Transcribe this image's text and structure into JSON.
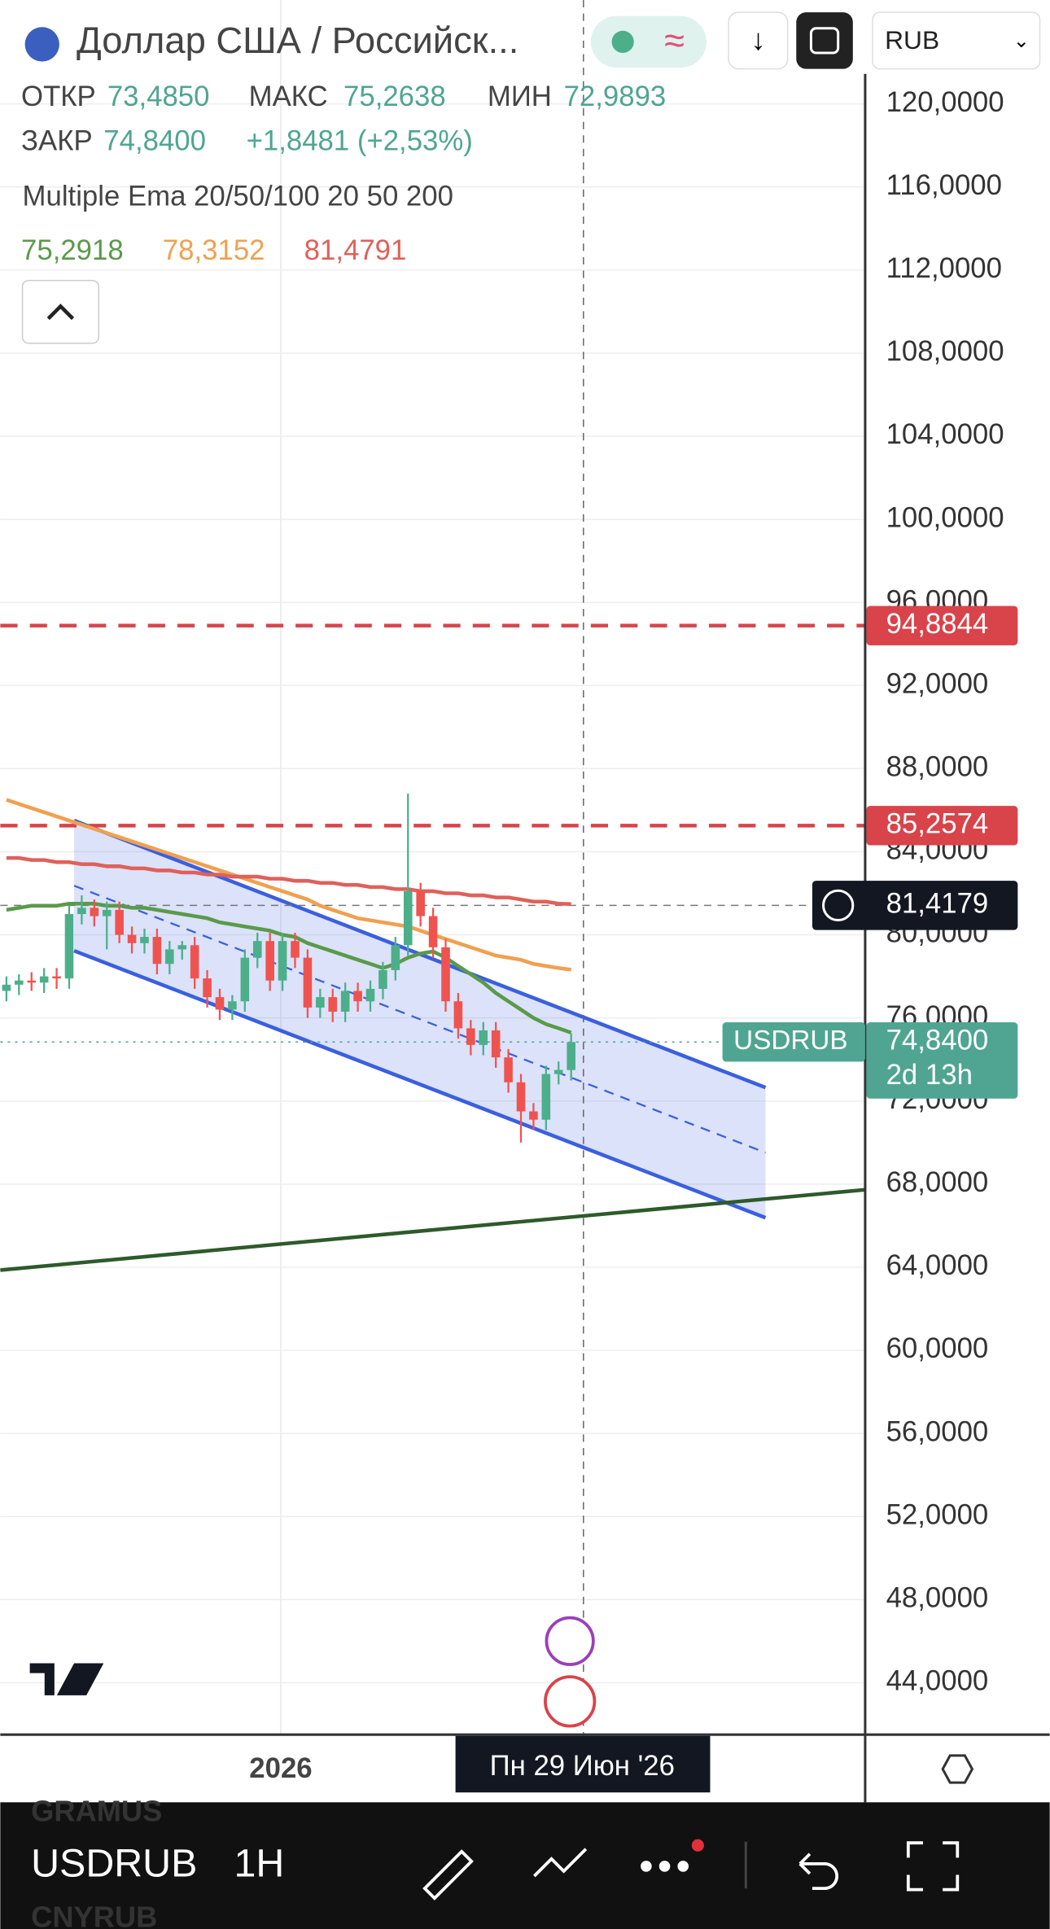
{
  "header": {
    "title": "Доллар США / Российск...",
    "open_label": "ОТКР",
    "open": "73,4850",
    "high_label": "МАКС",
    "high": "75,2638",
    "low_label": "МИН",
    "low": "72,9893",
    "close_label": "ЗАКР",
    "close": "74,8400",
    "change": "+1,8481 (+2,53%)",
    "currency": "RUB"
  },
  "indicator": {
    "name": "Multiple Ema 20/50/100 20 50 200",
    "values": [
      "75,2918",
      "78,3152",
      "81,4791"
    ]
  },
  "chart_data": {
    "type": "candlestick",
    "open": [
      77.3,
      77.6,
      77.8,
      77.7,
      78.0,
      77.9,
      81.0,
      81.3,
      80.9,
      81.2,
      80.0,
      79.6,
      79.9,
      78.6,
      79.3,
      79.5,
      77.9,
      77.0,
      76.4,
      76.8,
      78.9,
      79.7,
      77.8,
      79.7,
      78.9,
      76.5,
      77.0,
      76.3,
      77.3,
      76.8,
      77.4,
      78.3,
      79.5,
      82.1,
      80.9,
      79.4,
      76.8,
      75.5,
      74.7,
      75.4,
      74.1,
      72.9,
      71.5,
      71.1,
      73.3,
      73.49
    ],
    "high": [
      78.0,
      78.1,
      78.2,
      78.4,
      78.4,
      81.4,
      81.9,
      81.7,
      81.6,
      81.6,
      80.4,
      80.3,
      80.3,
      79.7,
      79.7,
      79.9,
      78.3,
      77.4,
      77.1,
      79.3,
      80.1,
      80.1,
      80.1,
      80.1,
      79.3,
      77.4,
      77.4,
      77.7,
      77.7,
      77.8,
      78.7,
      79.9,
      86.8,
      82.5,
      81.3,
      79.8,
      77.2,
      75.9,
      75.8,
      75.8,
      74.5,
      73.3,
      71.9,
      73.7,
      73.9,
      75.26
    ],
    "low": [
      76.8,
      77.1,
      77.3,
      77.2,
      77.4,
      77.4,
      80.5,
      80.4,
      79.3,
      79.6,
      79.1,
      79.1,
      78.1,
      78.1,
      78.8,
      77.4,
      76.5,
      75.9,
      75.9,
      76.3,
      78.4,
      77.3,
      77.3,
      78.4,
      76.0,
      76.0,
      75.8,
      75.8,
      76.3,
      76.3,
      76.9,
      77.8,
      79.0,
      80.4,
      78.9,
      76.3,
      75.0,
      74.2,
      74.2,
      73.6,
      72.4,
      70.0,
      70.6,
      70.6,
      72.8,
      72.99
    ],
    "close": [
      77.6,
      77.8,
      77.7,
      78.0,
      77.9,
      81.0,
      81.3,
      80.9,
      81.2,
      80.0,
      79.6,
      79.9,
      78.6,
      79.3,
      79.5,
      77.9,
      77.0,
      76.4,
      76.8,
      78.9,
      79.7,
      77.8,
      79.7,
      78.9,
      76.5,
      77.0,
      76.3,
      77.3,
      76.8,
      77.4,
      78.3,
      79.5,
      82.1,
      80.9,
      79.4,
      76.8,
      75.5,
      74.7,
      75.4,
      74.1,
      72.9,
      71.5,
      71.1,
      73.3,
      73.5,
      74.84
    ],
    "up_color": "#4caf8a",
    "down_color": "#ef5350",
    "series": [
      {
        "color": "#5a9a4a",
        "values": [
          81.2,
          81.3,
          81.4,
          81.4,
          81.4,
          81.5,
          81.5,
          81.5,
          81.4,
          81.4,
          81.3,
          81.3,
          81.2,
          81.1,
          81.0,
          80.9,
          80.8,
          80.6,
          80.5,
          80.4,
          80.3,
          80.2,
          80.0,
          79.9,
          79.6,
          79.4,
          79.2,
          79.0,
          78.8,
          78.6,
          78.4,
          78.6,
          78.9,
          79.1,
          79.2,
          78.9,
          78.5,
          78.1,
          77.7,
          77.2,
          76.8,
          76.4,
          76.0,
          75.7,
          75.5,
          75.29
        ]
      },
      {
        "color": "#f0a050",
        "values": [
          86.5,
          86.3,
          86.1,
          85.9,
          85.7,
          85.5,
          85.3,
          85.1,
          84.9,
          84.7,
          84.5,
          84.3,
          84.1,
          83.9,
          83.7,
          83.5,
          83.3,
          83.1,
          82.9,
          82.7,
          82.5,
          82.3,
          82.1,
          81.9,
          81.7,
          81.4,
          81.2,
          81.0,
          80.8,
          80.7,
          80.6,
          80.5,
          80.4,
          80.2,
          80.0,
          79.8,
          79.6,
          79.4,
          79.2,
          79.0,
          78.9,
          78.8,
          78.6,
          78.5,
          78.4,
          78.32
        ]
      },
      {
        "color": "#e0605a",
        "values": [
          83.7,
          83.7,
          83.6,
          83.6,
          83.5,
          83.5,
          83.4,
          83.4,
          83.3,
          83.3,
          83.2,
          83.2,
          83.1,
          83.1,
          83.0,
          83.0,
          82.9,
          82.9,
          82.8,
          82.8,
          82.8,
          82.7,
          82.7,
          82.6,
          82.6,
          82.5,
          82.5,
          82.4,
          82.4,
          82.3,
          82.3,
          82.2,
          82.2,
          82.1,
          82.1,
          82.0,
          82.0,
          81.9,
          81.9,
          81.8,
          81.8,
          81.7,
          81.6,
          81.6,
          81.5,
          81.48
        ]
      }
    ],
    "channel": {
      "upper": [
        85.5,
        72.65
      ],
      "lower": [
        79.23,
        66.38
      ],
      "color": "#3a5fe0"
    },
    "trendline": {
      "values": [
        63.86,
        67.73
      ],
      "color": "#2e5a2a"
    },
    "ylim": [
      41.5,
      125
    ],
    "yticks": [
      {
        "value": 120,
        "label": "120,0000"
      },
      {
        "value": 116,
        "label": "116,0000"
      },
      {
        "value": 112,
        "label": "112,0000"
      },
      {
        "value": 108,
        "label": "108,0000"
      },
      {
        "value": 104,
        "label": "104,0000"
      },
      {
        "value": 100,
        "label": "100,0000"
      },
      {
        "value": 96,
        "label": "96,0000"
      },
      {
        "value": 92,
        "label": "92,0000"
      },
      {
        "value": 88,
        "label": "88,0000"
      },
      {
        "value": 84,
        "label": "84,0000"
      },
      {
        "value": 80,
        "label": "80,0000"
      },
      {
        "value": 76,
        "label": "76,0000"
      },
      {
        "value": 72,
        "label": "72,0000"
      },
      {
        "value": 68,
        "label": "68,0000"
      },
      {
        "value": 64,
        "label": "64,0000"
      },
      {
        "value": 60,
        "label": "60,0000"
      },
      {
        "value": 56,
        "label": "56,0000"
      },
      {
        "value": 52,
        "label": "52,0000"
      },
      {
        "value": 48,
        "label": "48,0000"
      },
      {
        "value": 44,
        "label": "44,0000"
      }
    ],
    "price_lines": [
      {
        "value": 94.8844,
        "label": "94,8844",
        "color": "#d9434a"
      },
      {
        "value": 85.2574,
        "label": "85,2574",
        "color": "#d9434a"
      }
    ],
    "crosshair": {
      "value": 81.4179,
      "label": "81,4179"
    },
    "last_price": {
      "value": 74.84,
      "label": "74,8400",
      "symbol": "USDRUB",
      "countdown": "2d 13h",
      "color": "#4fa592"
    },
    "xlabels": [
      "2026",
      "Пн 29 Июн '26"
    ],
    "grid": true
  },
  "toolbar": {
    "above": "GRAMUS",
    "symbol": "USDRUB",
    "interval": "1H",
    "below": "CNYRUB"
  }
}
